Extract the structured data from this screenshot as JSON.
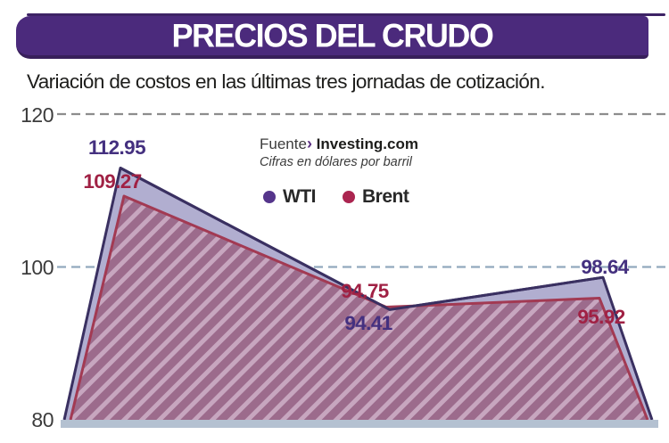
{
  "header": {
    "title": "PRECIOS DEL CRUDO",
    "subtitle": "Variación de costos en las últimas tres jornadas de cotización."
  },
  "source": {
    "prefix": "Fuente",
    "arrow": "›",
    "name": "Investing.com",
    "note": "Cifras en dólares por barril"
  },
  "legend": [
    {
      "label": "WTI",
      "color": "#55358b"
    },
    {
      "label": "Brent",
      "color": "#ab2550"
    }
  ],
  "colors": {
    "banner_bg": "#4b2a7c",
    "banner_shadow": "#381f5a",
    "top_rule": "#3d2365",
    "text_dark": "#1d1d1b",
    "axis_label": "#3c3c3c",
    "grid_top": "#8d8d8d",
    "grid_mid": "#92a9bd",
    "baseline_bar": "#b4c1d1",
    "source_arrow": "#5a2d82",
    "hatch_base": "#9c6b8c",
    "hatch_stripe": "#c7a6bf"
  },
  "chart_data": {
    "type": "area",
    "description": "Two overlapping area series over three trading days",
    "categories": [
      "",
      "",
      ""
    ],
    "series": [
      {
        "name": "WTI",
        "values": [
          112.95,
          94.41,
          98.64
        ],
        "labels": [
          "112.95",
          "94.41",
          "98.64"
        ],
        "line_color": "#3a3061",
        "fill_color": "#b1aed0",
        "label_color": "#44307f"
      },
      {
        "name": "Brent",
        "values": [
          109.27,
          94.75,
          95.92
        ],
        "labels": [
          "109.27",
          "94.75",
          "95.92"
        ],
        "line_color": "#a23a53",
        "fill_color": "hatched",
        "label_color": "#a02144"
      }
    ],
    "ylim": [
      80,
      120
    ],
    "yticks": [
      120,
      100,
      80
    ],
    "grid": "dashed horizontal gridlines at 120 and 100",
    "legend_position": "top-center",
    "xlabel": "",
    "ylabel": ""
  }
}
